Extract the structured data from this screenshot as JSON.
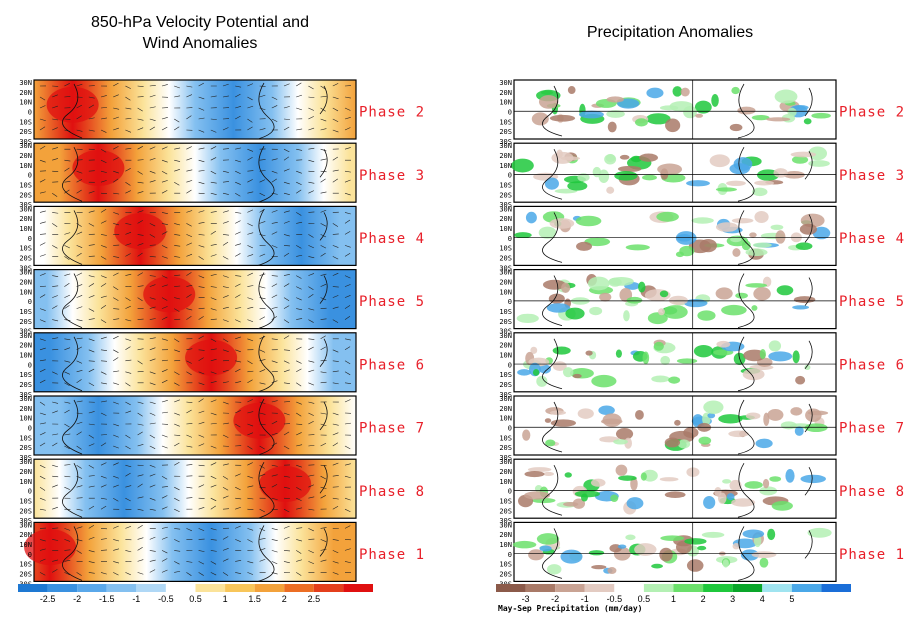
{
  "left_title": {
    "line1": "850-hPa Velocity Potential and",
    "line2": "Wind Anomalies"
  },
  "right_title": "Precipitation Anomalies",
  "lat_labels": [
    "30N",
    "20N",
    "10N",
    "0",
    "10S",
    "20S",
    "30S"
  ],
  "phase_order": [
    "Phase 2",
    "Phase 3",
    "Phase 4",
    "Phase 5",
    "Phase 6",
    "Phase 7",
    "Phase 8",
    "Phase 1"
  ],
  "left_colorbar": {
    "tick_labels": [
      "-2.5",
      "-2",
      "-1.5",
      "-1",
      "-0.5",
      "0.5",
      "1",
      "1.5",
      "2",
      "2.5"
    ],
    "colors": [
      "#1e78d2",
      "#3a91e0",
      "#5aa8ea",
      "#84c0f0",
      "#b0d8f6",
      "#ffffff",
      "#fbe39a",
      "#f8c65a",
      "#f3a23b",
      "#ec6e24",
      "#e43f1c",
      "#e01010"
    ]
  },
  "right_colorbar": {
    "tick_labels": [
      "-3",
      "-2",
      "-1",
      "-0.5",
      "0.5",
      "1",
      "2",
      "3",
      "4",
      "5"
    ],
    "colors": [
      "#8b5a4a",
      "#a97a68",
      "#c9a394",
      "#e3cbc2",
      "#ffffff",
      "#b4f0b4",
      "#6be06b",
      "#1fc83c",
      "#0aa62a",
      "#a0e4f0",
      "#4aa8e8",
      "#1a6ed8"
    ],
    "title": "May-Sep Precipitation (mm/day)"
  },
  "chart_data": [
    {
      "type": "heatmap",
      "title": "850-hPa Velocity Potential and Wind Anomalies",
      "panels": [
        "Phase 2",
        "Phase 3",
        "Phase 4",
        "Phase 5",
        "Phase 6",
        "Phase 7",
        "Phase 8",
        "Phase 1"
      ],
      "y_ticks": [
        "30N",
        "20N",
        "10N",
        "0",
        "10S",
        "20S",
        "30S"
      ],
      "colorbar_ticks": [
        -2.5,
        -2,
        -1.5,
        -1,
        -0.5,
        0.5,
        1,
        1.5,
        2,
        2.5
      ],
      "positive_center_lon_fraction": [
        0.12,
        0.2,
        0.33,
        0.42,
        0.55,
        0.7,
        0.78,
        0.05
      ]
    },
    {
      "type": "heatmap",
      "title": "Precipitation Anomalies",
      "panels": [
        "Phase 2",
        "Phase 3",
        "Phase 4",
        "Phase 5",
        "Phase 6",
        "Phase 7",
        "Phase 8",
        "Phase 1"
      ],
      "y_ticks": [
        "30N",
        "20N",
        "10N",
        "0",
        "10S",
        "20S",
        "30S"
      ],
      "colorbar_ticks": [
        -3,
        -2,
        -1,
        -0.5,
        0.5,
        1,
        2,
        3,
        4,
        5
      ],
      "colorbar_label": "May-Sep Precipitation (mm/day)"
    }
  ]
}
